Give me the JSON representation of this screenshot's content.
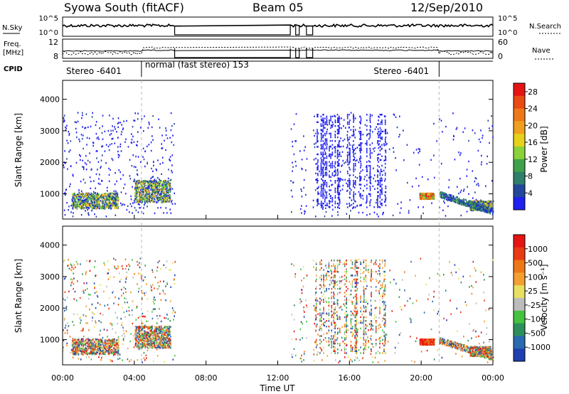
{
  "header": {
    "site": "Syowa South (fitACF)",
    "beam": "Beam 05",
    "date": "12/Sep/2010"
  },
  "strip_labels": {
    "nsky": "N.Sky",
    "nsearch": "N.Search",
    "freq": "Freq.",
    "mhz": "[MHz]",
    "nave": "Nave",
    "cpid": "CPID"
  },
  "strip_ticks": {
    "nsky_top": "10^5",
    "nsky_bottom": "10^0",
    "nsearch_top": "10^5",
    "nsearch_bottom": "10^0",
    "freq_top": "12",
    "freq_bottom": "8",
    "nave_top": "60",
    "nave_bottom": "0"
  },
  "cpid_segments": [
    {
      "label": "Stereo -6401",
      "start_h": 0.0,
      "end_h": 4.4
    },
    {
      "label": "normal (fast stereo) 153",
      "start_h": 4.4,
      "end_h": 21.0
    },
    {
      "label": "Stereo -6401",
      "start_h": 21.0,
      "end_h": 24.0
    }
  ],
  "chart_data": [
    {
      "type": "heatmap",
      "name": "power",
      "ylabel": "Slant Range [km]",
      "yticks": [
        "1000",
        "2000",
        "3000",
        "4000"
      ],
      "ylim": [
        200,
        4600
      ],
      "xlim_hours": [
        0,
        24
      ],
      "colorbar_label": "Power [dB]",
      "colorbar_ticks": [
        "4",
        "8",
        "12",
        "16",
        "20",
        "24",
        "28"
      ],
      "colorbar_colors": [
        "#1f1ff0",
        "#23479a",
        "#2f7f6a",
        "#3fa24a",
        "#8ad23a",
        "#e6d21c",
        "#f0a020",
        "#ee7818",
        "#ea4a14",
        "#e61414"
      ],
      "data_gaps_hours": [
        [
          6.25,
          12.7
        ],
        [
          13.0,
          13.2
        ],
        [
          13.6,
          13.95
        ]
      ]
    },
    {
      "type": "heatmap",
      "name": "velocity",
      "ylabel": "Slant Range [km]",
      "yticks": [
        "1000",
        "2000",
        "3000",
        "4000"
      ],
      "ylim": [
        200,
        4600
      ],
      "xlim_hours": [
        0,
        24
      ],
      "colorbar_label": "Velocity [m s⁻¹]",
      "colorbar_ticks": [
        "1000",
        "500",
        "100",
        "25",
        "-25",
        "-100",
        "-500",
        "-1000"
      ],
      "colorbar_colors": [
        "#1f3fb0",
        "#2a6ab0",
        "#2f8f5a",
        "#46c240",
        "#bcbcbc",
        "#e8e060",
        "#f4a030",
        "#ee7818",
        "#ea3a14",
        "#e61414"
      ],
      "data_gaps_hours": [
        [
          6.25,
          12.7
        ],
        [
          13.0,
          13.2
        ],
        [
          13.6,
          13.95
        ]
      ]
    }
  ],
  "xaxis": {
    "label": "Time UT",
    "ticks": [
      "00:00",
      "04:00",
      "08:00",
      "12:00",
      "16:00",
      "20:00",
      "00:00"
    ]
  }
}
